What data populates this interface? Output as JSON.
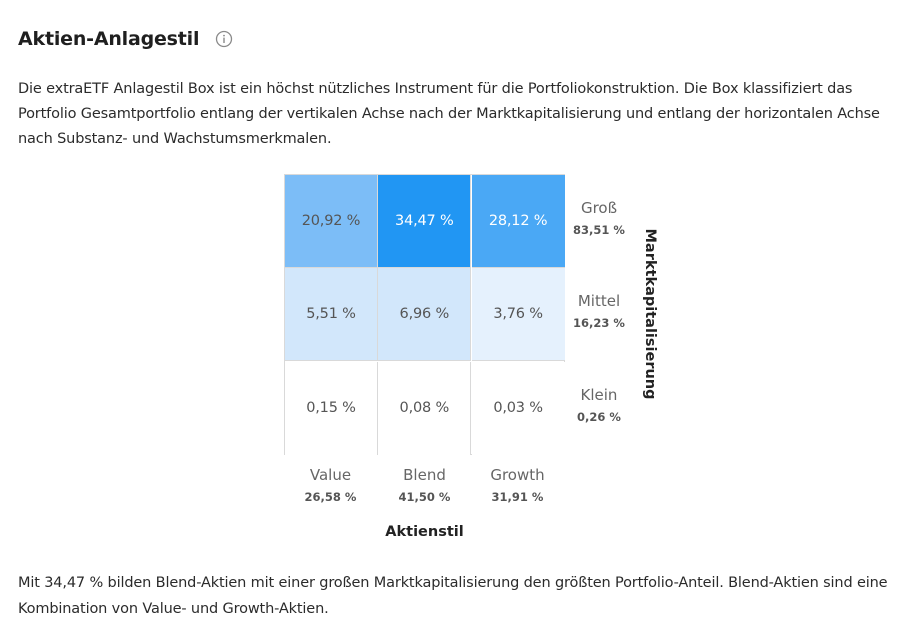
{
  "header": {
    "title": "Aktien-Anlagestil",
    "info_icon": "info-icon"
  },
  "intro_text": "Die extraETF Anlagestil Box ist ein höchst nützliches Instrument für die Portfoliokonstruktion. Die Box klassifiziert das Portfolio Gesamtportfolio entlang der vertikalen Achse nach der Marktkapitalisierung und entlang der horizontalen Achse nach Substanz- und Wachstumsmerkmalen.",
  "chart_data": {
    "type": "heatmap",
    "xlabel": "Aktienstil",
    "ylabel": "Marktkapitalisierung",
    "columns": [
      {
        "name": "Value",
        "total": "26,58 %"
      },
      {
        "name": "Blend",
        "total": "41,50 %"
      },
      {
        "name": "Growth",
        "total": "31,91 %"
      }
    ],
    "rows": [
      {
        "name": "Groß",
        "total": "83,51 %"
      },
      {
        "name": "Mittel",
        "total": "16,23 %"
      },
      {
        "name": "Klein",
        "total": "0,26 %"
      }
    ],
    "cells": [
      [
        "20,92 %",
        "34,47 %",
        "28,12 %"
      ],
      [
        "5,51 %",
        "6,96 %",
        "3,76 %"
      ],
      [
        "0,15 %",
        "0,08 %",
        "0,03 %"
      ]
    ],
    "values": [
      [
        20.92,
        34.47,
        28.12
      ],
      [
        5.51,
        6.96,
        3.76
      ],
      [
        0.15,
        0.08,
        0.03
      ]
    ],
    "colors": {
      "max": "#2196f3",
      "high": "#4aa8f5",
      "mid": "#7cbdf7",
      "low": "#d2e7fb",
      "lower": "#e5f1fd",
      "none": "#ffffff"
    }
  },
  "summary_text": "Mit 34,47 % bilden Blend-Aktien mit einer großen Marktkapitalisierung den größten Portfolio-Anteil. Blend-Aktien sind eine Kombination von Value- und Growth-Aktien."
}
